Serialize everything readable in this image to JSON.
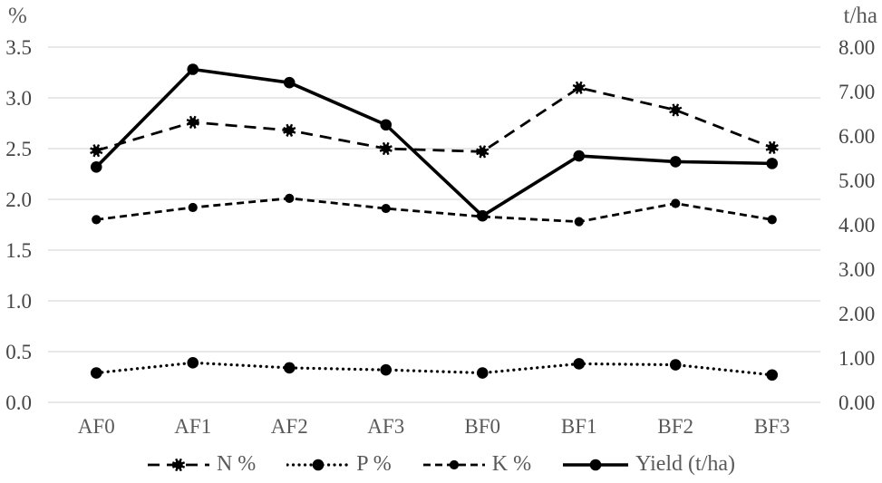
{
  "chart_data": {
    "type": "line",
    "title": "",
    "categories": [
      "AF0",
      "AF1",
      "AF2",
      "AF3",
      "BF0",
      "BF1",
      "BF2",
      "BF3"
    ],
    "series": [
      {
        "name": "N %",
        "axis": "left",
        "line_style": "long-dash",
        "marker": "burst",
        "values": [
          2.48,
          2.76,
          2.68,
          2.5,
          2.47,
          3.1,
          2.88,
          2.51
        ]
      },
      {
        "name": "P %",
        "axis": "left",
        "line_style": "dotted",
        "marker": "circle-large",
        "values": [
          0.29,
          0.39,
          0.34,
          0.32,
          0.29,
          0.38,
          0.37,
          0.27
        ]
      },
      {
        "name": "K %",
        "axis": "left",
        "line_style": "dash",
        "marker": "circle",
        "values": [
          1.8,
          1.92,
          2.01,
          1.91,
          1.83,
          1.78,
          1.96,
          1.8
        ]
      },
      {
        "name": "Yield (t/ha)",
        "axis": "right",
        "line_style": "solid",
        "marker": "circle-large",
        "values": [
          5.3,
          7.5,
          7.2,
          6.25,
          4.2,
          5.55,
          5.42,
          5.38
        ]
      }
    ],
    "left_axis": {
      "title": "%",
      "min": 0,
      "max": 3.5,
      "tick_labels": [
        "0.0",
        "0.5",
        "1.0",
        "1.5",
        "2.0",
        "2.5",
        "3.0",
        "3.5"
      ]
    },
    "right_axis": {
      "title": "t/ha",
      "min": 0,
      "max": 8,
      "tick_labels": [
        "0.00",
        "1.00",
        "2.00",
        "3.00",
        "4.00",
        "5.00",
        "6.00",
        "7.00",
        "8.00"
      ]
    },
    "legend": {
      "position": "bottom",
      "entries": [
        "N %",
        "P %",
        "K %",
        "Yield (t/ha)"
      ]
    },
    "grid": true,
    "colors": {
      "line": "#000000",
      "grid": "#d9d9d9",
      "tick_label": "#454545",
      "category_label": "#595959",
      "legend_text": "#595959",
      "axis_title": "#595959",
      "background": "#ffffff"
    }
  }
}
